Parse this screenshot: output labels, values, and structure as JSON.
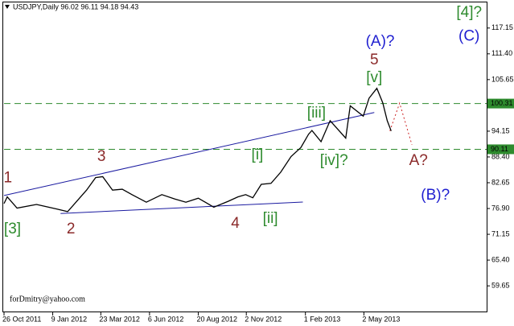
{
  "chart_data": {
    "type": "line",
    "title": "USDJPY,Daily  96.02 96.11 94.18 94.43",
    "watermark": "forDmitry@yahoo.com",
    "color": "#000000",
    "x": [
      "2011-10-26",
      "2011-10-31",
      "2011-11-15",
      "2011-12-15",
      "2012-01-15",
      "2012-02-01",
      "2012-02-15",
      "2012-03-01",
      "2012-03-15",
      "2012-03-26",
      "2012-04-10",
      "2012-04-25",
      "2012-05-10",
      "2012-06-01",
      "2012-06-25",
      "2012-07-15",
      "2012-08-01",
      "2012-08-20",
      "2012-09-13",
      "2012-10-05",
      "2012-10-20",
      "2012-11-01",
      "2012-11-12",
      "2012-11-25",
      "2012-12-10",
      "2012-12-25",
      "2013-01-10",
      "2013-01-25",
      "2013-02-06",
      "2013-02-11",
      "2013-02-25",
      "2013-03-11",
      "2013-04-04",
      "2013-04-11",
      "2013-05-01",
      "2013-05-10",
      "2013-05-22",
      "2013-05-31",
      "2013-06-07",
      "2013-06-13"
    ],
    "values": [
      78.0,
      79.5,
      77.0,
      77.8,
      76.8,
      76.2,
      78.5,
      81.0,
      83.8,
      84.0,
      81.0,
      81.2,
      80.0,
      78.3,
      80.0,
      79.0,
      78.3,
      79.2,
      77.2,
      78.5,
      79.5,
      80.0,
      79.3,
      82.3,
      82.5,
      85.0,
      88.5,
      90.5,
      93.5,
      94.3,
      91.8,
      96.5,
      92.6,
      99.8,
      97.5,
      101.5,
      103.7,
      100.5,
      96.5,
      94.2
    ],
    "xlim": [
      "2011-10-26",
      "2013-11-07"
    ],
    "ylim": [
      53.75,
      123.4
    ],
    "xticks": [
      {
        "value": "2011-10-26",
        "label": "26 Oct 2011"
      },
      {
        "value": "2012-01-09",
        "label": "9 Jan 2012"
      },
      {
        "value": "2012-03-23",
        "label": "23 Mar 2012"
      },
      {
        "value": "2012-06-06",
        "label": "6 Jun 2012"
      },
      {
        "value": "2012-08-20",
        "label": "20 Aug 2012"
      },
      {
        "value": "2012-11-02",
        "label": "2 Nov 2012"
      },
      {
        "value": "2013-02-01",
        "label": "1 Feb 2013"
      },
      {
        "value": "2013-05-02",
        "label": "2 May 2013"
      }
    ],
    "yticks": [
      117.15,
      {
        "value": 111.4,
        "label": "111.40"
      },
      105.65,
      94.15,
      {
        "value": 88.4,
        "label": "88.40"
      },
      82.65,
      {
        "value": 76.9,
        "label": "76.90"
      },
      71.15,
      {
        "value": 65.4,
        "label": "65.40"
      },
      59.65
    ],
    "hlines": [
      {
        "value": 100.31,
        "color": "#2e8b2e"
      },
      {
        "value": 90.11,
        "color": "#2e8b2e"
      }
    ],
    "lines": [
      {
        "x": [
          "2011-10-26",
          "2013-05-18"
        ],
        "values": [
          79.8,
          98.3
        ],
        "color": "#1a1aa0",
        "dash": false
      },
      {
        "x": [
          "2012-01-21",
          "2013-01-28"
        ],
        "values": [
          75.8,
          78.35
        ],
        "color": "#1a1aa0",
        "dash": false
      },
      {
        "x": [
          "2013-06-11",
          "2013-06-26",
          "2013-07-15"
        ],
        "values": [
          94.2,
          100.4,
          91.1
        ],
        "color": "#cc2222",
        "dash": true
      }
    ],
    "annotations": [
      {
        "text": "1",
        "color": "#8b2a2a",
        "x": "2011-11-01",
        "y": 83.6
      },
      {
        "text": "[3]",
        "color": "#2e8b2e",
        "x": "2011-11-08",
        "y": 72.2
      },
      {
        "text": "2",
        "color": "#8b2a2a",
        "x": "2012-02-06",
        "y": 72.2
      },
      {
        "text": "3",
        "color": "#8b2a2a",
        "x": "2012-03-24",
        "y": 88.4
      },
      {
        "text": "4",
        "color": "#8b2a2a",
        "x": "2012-10-16",
        "y": 73.5
      },
      {
        "text": "[i]",
        "color": "#2e8b2e",
        "x": "2012-11-19",
        "y": 88.8
      },
      {
        "text": "[ii]",
        "color": "#2e8b2e",
        "x": "2012-12-09",
        "y": 74.6
      },
      {
        "text": "[iii]",
        "color": "#2e8b2e",
        "x": "2013-02-18",
        "y": 98.1
      },
      {
        "text": "[iv]?",
        "color": "#2e8b2e",
        "x": "2013-03-17",
        "y": 87.5
      },
      {
        "text": "[v]",
        "color": "#2e8b2e",
        "x": "2013-05-18",
        "y": 106.0
      },
      {
        "text": "5",
        "color": "#8b2a2a",
        "x": "2013-05-18",
        "y": 109.9
      },
      {
        "text": "(A)?",
        "color": "#1f1fd0",
        "x": "2013-05-27",
        "y": 114.1
      },
      {
        "text": "A?",
        "color": "#8b2a2a",
        "x": "2013-07-25",
        "y": 87.5
      },
      {
        "text": "(B)?",
        "color": "#1f1fd0",
        "x": "2013-08-20",
        "y": 79.8
      },
      {
        "text": "[4]?",
        "color": "#2e8b2e",
        "x": "2013-10-11",
        "y": 120.5
      },
      {
        "text": "(C)",
        "color": "#1f1fd0",
        "x": "2013-10-11",
        "y": 115.2
      }
    ]
  }
}
